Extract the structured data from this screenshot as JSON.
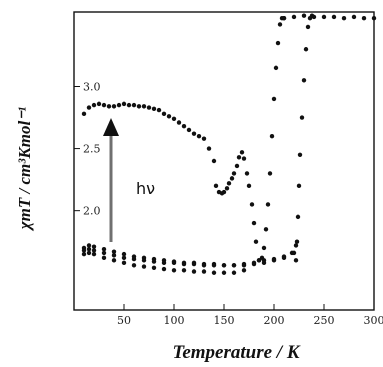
{
  "chart_data": {
    "type": "scatter",
    "xlabel": "Temperature / K",
    "ylabel": "χmT / cm³Kmol⁻¹",
    "annotation": "hν",
    "xlim": [
      0,
      300
    ],
    "ylim": [
      1.2,
      3.6
    ],
    "xticks": [
      50,
      100,
      150,
      200,
      250,
      300
    ],
    "yticks": [
      2.0,
      2.5,
      3.0
    ],
    "xtick_labels": [
      "50",
      "100",
      "150",
      "200",
      "250",
      "300"
    ],
    "ytick_labels": [
      "2.0",
      "2.5",
      "3.0"
    ],
    "colors": {
      "points": "#111111",
      "arrow": "#707070"
    },
    "series": [
      {
        "x": [
          10,
          15,
          20,
          25,
          30,
          35,
          40,
          45,
          50,
          55,
          60,
          65,
          70,
          75,
          80,
          85,
          90,
          95,
          100,
          105,
          110,
          115,
          120,
          125,
          130,
          135,
          140
        ],
        "y": [
          2.78,
          2.83,
          2.85,
          2.86,
          2.85,
          2.84,
          2.84,
          2.85,
          2.86,
          2.85,
          2.85,
          2.84,
          2.84,
          2.83,
          2.82,
          2.81,
          2.78,
          2.76,
          2.74,
          2.71,
          2.68,
          2.65,
          2.62,
          2.6,
          2.58,
          2.5,
          2.4
        ]
      },
      {
        "x": [
          142,
          145,
          148,
          150,
          153,
          155,
          158,
          160,
          163,
          165,
          168,
          170,
          173,
          175,
          178,
          180,
          182,
          185
        ],
        "y": [
          2.2,
          2.15,
          2.14,
          2.15,
          2.18,
          2.22,
          2.26,
          2.3,
          2.36,
          2.43,
          2.47,
          2.42,
          2.3,
          2.2,
          2.05,
          1.9,
          1.75,
          1.6
        ]
      },
      {
        "x": [
          185,
          188,
          190,
          192,
          194,
          196,
          198,
          200,
          202,
          204,
          206,
          208,
          210
        ],
        "y": [
          1.6,
          1.62,
          1.7,
          1.85,
          2.05,
          2.3,
          2.6,
          2.9,
          3.15,
          3.35,
          3.5,
          3.55,
          3.55
        ]
      },
      {
        "x": [
          210,
          220,
          230,
          240,
          250,
          260,
          270,
          280,
          290,
          300
        ],
        "y": [
          3.55,
          3.56,
          3.57,
          3.56,
          3.56,
          3.56,
          3.55,
          3.56,
          3.55,
          3.55
        ]
      },
      {
        "x": [
          222,
          223,
          224,
          225,
          226,
          228,
          230,
          232,
          234,
          236,
          238
        ],
        "y": [
          1.6,
          1.75,
          1.95,
          2.2,
          2.45,
          2.75,
          3.05,
          3.3,
          3.48,
          3.55,
          3.57
        ]
      },
      {
        "x": [
          10,
          15,
          20,
          30,
          40,
          50,
          60,
          70,
          80,
          90,
          100,
          110,
          120,
          130,
          140,
          150,
          160,
          170,
          180,
          190,
          200,
          210,
          218,
          222
        ],
        "y": [
          1.7,
          1.72,
          1.71,
          1.69,
          1.67,
          1.65,
          1.63,
          1.62,
          1.61,
          1.6,
          1.59,
          1.58,
          1.58,
          1.57,
          1.57,
          1.56,
          1.56,
          1.56,
          1.57,
          1.58,
          1.6,
          1.62,
          1.66,
          1.72
        ]
      },
      {
        "x": [
          10,
          15,
          20,
          30,
          40,
          50,
          60,
          70,
          80,
          90,
          100,
          110,
          120,
          130,
          140,
          150,
          160,
          170
        ],
        "y": [
          1.65,
          1.66,
          1.65,
          1.62,
          1.6,
          1.58,
          1.56,
          1.55,
          1.54,
          1.53,
          1.52,
          1.52,
          1.51,
          1.51,
          1.5,
          1.5,
          1.5,
          1.52
        ]
      },
      {
        "x": [
          10,
          15,
          20,
          30,
          40,
          50,
          60,
          70,
          80,
          90,
          100,
          110,
          120,
          130,
          140,
          150,
          160,
          170,
          180,
          190,
          200,
          210,
          220
        ],
        "y": [
          1.68,
          1.69,
          1.68,
          1.66,
          1.64,
          1.62,
          1.61,
          1.6,
          1.59,
          1.58,
          1.58,
          1.57,
          1.57,
          1.56,
          1.56,
          1.56,
          1.56,
          1.57,
          1.58,
          1.6,
          1.61,
          1.63,
          1.66
        ]
      }
    ]
  }
}
